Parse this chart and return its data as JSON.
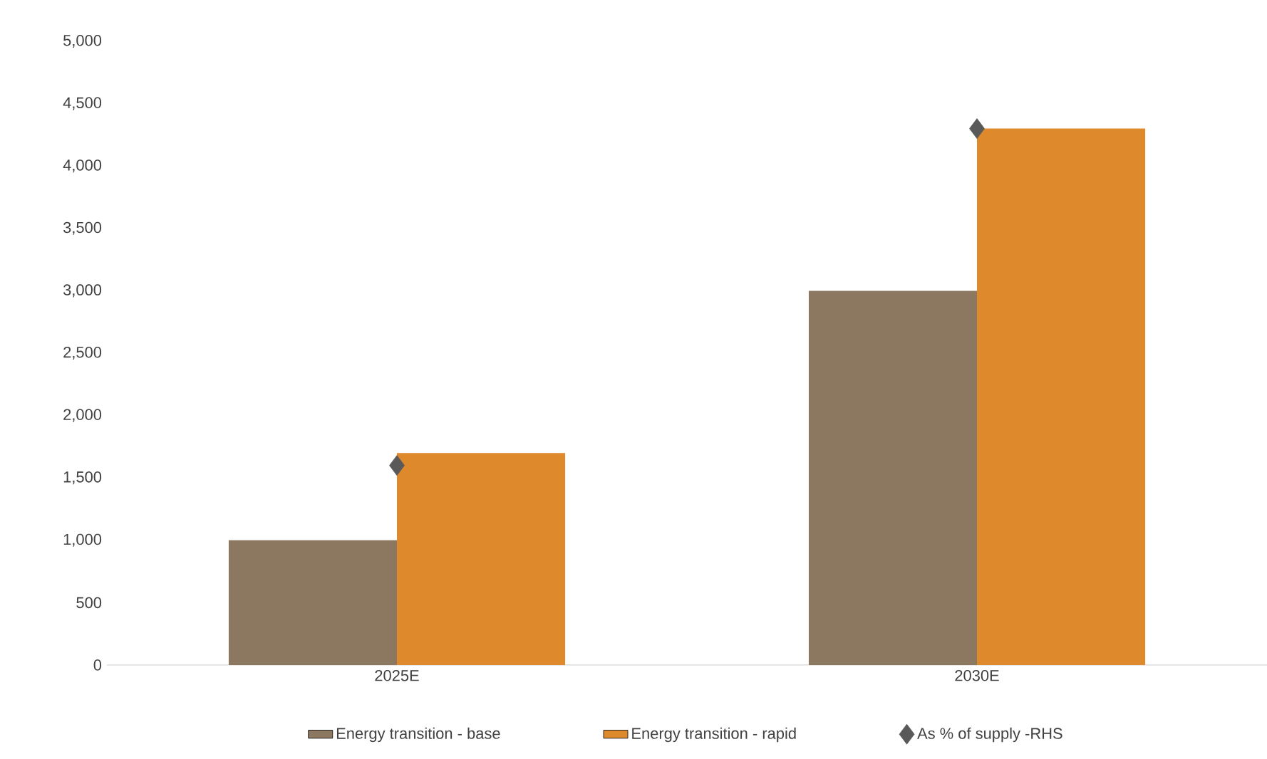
{
  "chart_data": {
    "type": "bar",
    "categories": [
      "2025E",
      "2030E"
    ],
    "series": [
      {
        "name": "Energy transition - base",
        "color": "#8c7760",
        "values": [
          1000,
          3000
        ]
      },
      {
        "name": "Energy transition - rapid",
        "color": "#dd892c",
        "values": [
          1700,
          4300
        ]
      },
      {
        "name": "As % of supply -RHS",
        "type": "scatter",
        "color": "#595959",
        "x": [
          "2025E",
          "2030E"
        ],
        "values": [
          1600,
          4300
        ]
      }
    ],
    "ylim": [
      0,
      5000
    ],
    "yticks": [
      0,
      500,
      {
        "value": 1000,
        "label": "1,000"
      },
      {
        "value": 1500,
        "label": "1,500"
      },
      {
        "value": 2000,
        "label": "2,000"
      },
      {
        "value": 2500,
        "label": "2,500"
      },
      {
        "value": 3000,
        "label": "3,000"
      },
      {
        "value": 3500,
        "label": "3,500"
      },
      {
        "value": 4000,
        "label": "4,000"
      },
      {
        "value": 4500,
        "label": "4,500"
      },
      {
        "value": 5000,
        "label": "5,000"
      }
    ],
    "grid": false,
    "legend": "bottom",
    "marker": "diamond"
  }
}
